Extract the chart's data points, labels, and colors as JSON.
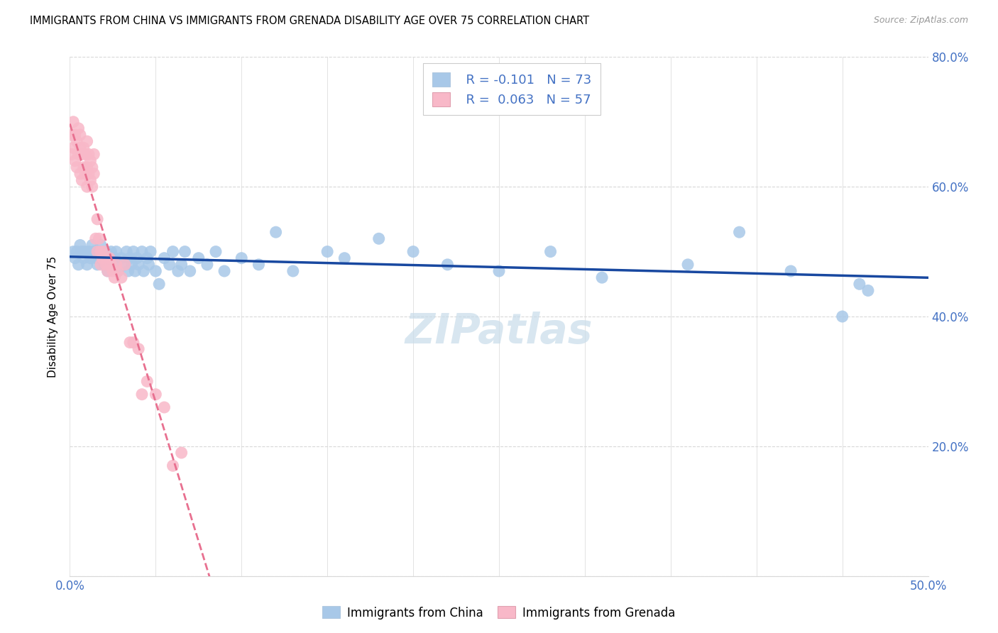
{
  "title": "IMMIGRANTS FROM CHINA VS IMMIGRANTS FROM GRENADA DISABILITY AGE OVER 75 CORRELATION CHART",
  "source": "Source: ZipAtlas.com",
  "ylabel": "Disability Age Over 75",
  "xlim": [
    0.0,
    0.5
  ],
  "ylim": [
    0.0,
    0.8
  ],
  "yticks": [
    0.0,
    0.2,
    0.4,
    0.6,
    0.8
  ],
  "ytick_labels": [
    "",
    "20.0%",
    "40.0%",
    "60.0%",
    "80.0%"
  ],
  "xticks": [
    0.0,
    0.05,
    0.1,
    0.15,
    0.2,
    0.25,
    0.3,
    0.35,
    0.4,
    0.45,
    0.5
  ],
  "china_R": -0.101,
  "china_N": 73,
  "grenada_R": 0.063,
  "grenada_N": 57,
  "china_scatter_color": "#a8c8e8",
  "grenada_scatter_color": "#f8b8c8",
  "china_line_color": "#1848a0",
  "grenada_line_color": "#e87090",
  "legend_R_color": "#4472c4",
  "legend_N_color": "#4472c4",
  "background_color": "#ffffff",
  "watermark_color": "#c8dcea",
  "china_x": [
    0.002,
    0.003,
    0.004,
    0.005,
    0.006,
    0.007,
    0.008,
    0.009,
    0.01,
    0.011,
    0.012,
    0.013,
    0.014,
    0.015,
    0.016,
    0.017,
    0.018,
    0.019,
    0.02,
    0.021,
    0.022,
    0.023,
    0.024,
    0.025,
    0.026,
    0.027,
    0.028,
    0.03,
    0.032,
    0.033,
    0.034,
    0.035,
    0.036,
    0.037,
    0.038,
    0.039,
    0.04,
    0.042,
    0.043,
    0.045,
    0.046,
    0.047,
    0.05,
    0.052,
    0.055,
    0.058,
    0.06,
    0.063,
    0.065,
    0.067,
    0.07,
    0.075,
    0.08,
    0.085,
    0.09,
    0.1,
    0.11,
    0.12,
    0.13,
    0.15,
    0.16,
    0.18,
    0.2,
    0.22,
    0.25,
    0.28,
    0.31,
    0.36,
    0.39,
    0.42,
    0.45,
    0.46,
    0.465
  ],
  "china_y": [
    0.5,
    0.49,
    0.5,
    0.48,
    0.51,
    0.5,
    0.49,
    0.5,
    0.48,
    0.5,
    0.49,
    0.51,
    0.5,
    0.49,
    0.48,
    0.5,
    0.51,
    0.49,
    0.48,
    0.5,
    0.47,
    0.49,
    0.5,
    0.48,
    0.49,
    0.5,
    0.47,
    0.49,
    0.48,
    0.5,
    0.47,
    0.49,
    0.48,
    0.5,
    0.47,
    0.49,
    0.48,
    0.5,
    0.47,
    0.49,
    0.48,
    0.5,
    0.47,
    0.45,
    0.49,
    0.48,
    0.5,
    0.47,
    0.48,
    0.5,
    0.47,
    0.49,
    0.48,
    0.5,
    0.47,
    0.49,
    0.48,
    0.53,
    0.47,
    0.5,
    0.49,
    0.52,
    0.5,
    0.48,
    0.47,
    0.5,
    0.46,
    0.48,
    0.53,
    0.47,
    0.4,
    0.45,
    0.44
  ],
  "grenada_x": [
    0.001,
    0.001,
    0.002,
    0.002,
    0.003,
    0.003,
    0.004,
    0.004,
    0.005,
    0.005,
    0.006,
    0.006,
    0.006,
    0.007,
    0.007,
    0.008,
    0.008,
    0.009,
    0.009,
    0.01,
    0.01,
    0.01,
    0.011,
    0.011,
    0.012,
    0.012,
    0.013,
    0.013,
    0.014,
    0.014,
    0.015,
    0.016,
    0.016,
    0.017,
    0.018,
    0.018,
    0.019,
    0.02,
    0.021,
    0.022,
    0.023,
    0.024,
    0.025,
    0.026,
    0.027,
    0.028,
    0.03,
    0.032,
    0.035,
    0.037,
    0.04,
    0.042,
    0.045,
    0.05,
    0.055,
    0.06,
    0.065
  ],
  "grenada_y": [
    0.68,
    0.65,
    0.7,
    0.66,
    0.68,
    0.64,
    0.67,
    0.63,
    0.69,
    0.65,
    0.66,
    0.62,
    0.68,
    0.65,
    0.61,
    0.66,
    0.63,
    0.65,
    0.62,
    0.67,
    0.63,
    0.6,
    0.65,
    0.62,
    0.64,
    0.61,
    0.63,
    0.6,
    0.65,
    0.62,
    0.52,
    0.55,
    0.5,
    0.52,
    0.48,
    0.5,
    0.49,
    0.5,
    0.48,
    0.47,
    0.49,
    0.48,
    0.47,
    0.46,
    0.48,
    0.47,
    0.46,
    0.48,
    0.36,
    0.36,
    0.35,
    0.28,
    0.3,
    0.28,
    0.26,
    0.17,
    0.19
  ]
}
